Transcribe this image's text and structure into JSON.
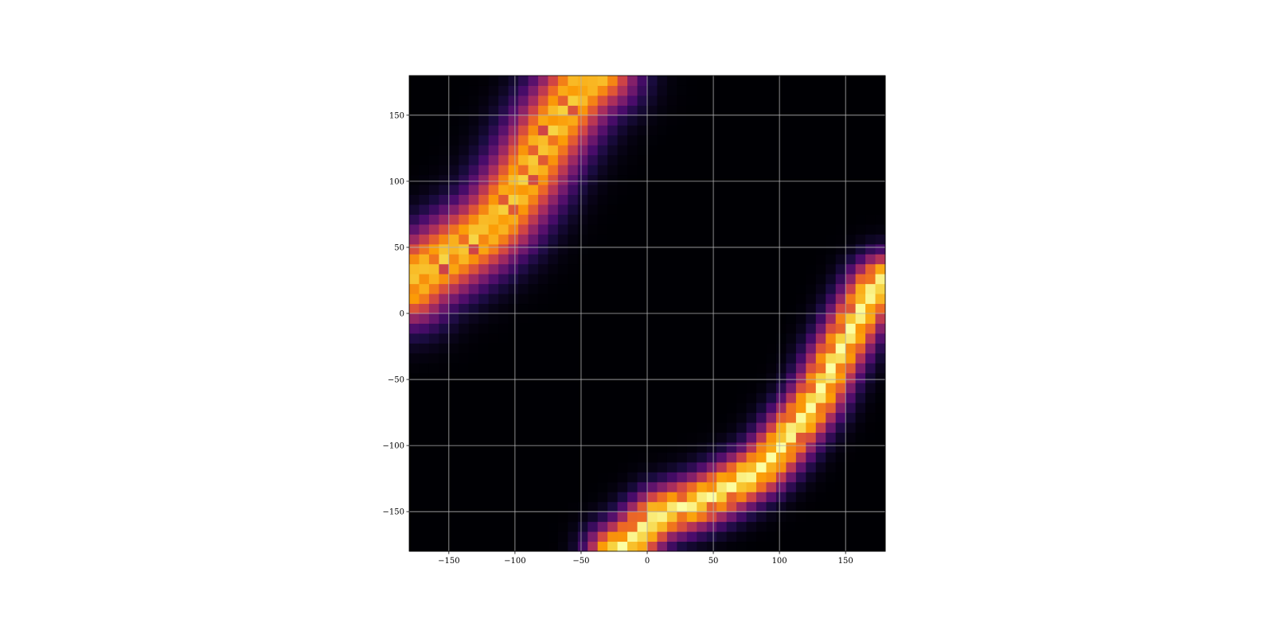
{
  "chart_data": {
    "type": "heatmap",
    "title": "",
    "xlabel": "",
    "ylabel": "",
    "xlim": [
      -180,
      180
    ],
    "ylim": [
      -180,
      180
    ],
    "bins": 48,
    "grid": true,
    "colormap": "inferno",
    "colormap_stops": [
      "#000004",
      "#1b0c41",
      "#4a0c6b",
      "#781c6d",
      "#a52c60",
      "#cf4446",
      "#ed6925",
      "#fb9b06",
      "#f7d13d",
      "#fcffa4"
    ],
    "xticks": [
      -150,
      -100,
      -50,
      0,
      50,
      100,
      150
    ],
    "yticks": [
      -150,
      -100,
      -50,
      0,
      50,
      100,
      150
    ],
    "xtick_labels": [
      "−150",
      "−100",
      "−50",
      "0",
      "50",
      "100",
      "150"
    ],
    "ytick_labels": [
      "−150",
      "−100",
      "−50",
      "0",
      "50",
      "100",
      "150"
    ],
    "density_bands": [
      {
        "name": "upper-left band",
        "points": [
          [
            -178,
            22
          ],
          [
            -168,
            32
          ],
          [
            -155,
            40
          ],
          [
            -140,
            50
          ],
          [
            -125,
            60
          ],
          [
            -112,
            72
          ],
          [
            -100,
            90
          ],
          [
            -90,
            106
          ],
          [
            -80,
            125
          ],
          [
            -70,
            142
          ],
          [
            -60,
            158
          ],
          [
            -50,
            172
          ],
          [
            -38,
            182
          ]
        ],
        "half_width_outer": 45,
        "half_width_inner": 6,
        "peak_intensity": 0.9
      },
      {
        "name": "lower-right band",
        "points": [
          [
            -25,
            -180
          ],
          [
            -10,
            -170
          ],
          [
            0,
            -160
          ],
          [
            10,
            -152
          ],
          [
            25,
            -147
          ],
          [
            40,
            -142
          ],
          [
            55,
            -135
          ],
          [
            70,
            -127
          ],
          [
            85,
            -118
          ],
          [
            95,
            -108
          ],
          [
            105,
            -96
          ],
          [
            112,
            -86
          ],
          [
            120,
            -76
          ],
          [
            128,
            -64
          ],
          [
            135,
            -50
          ],
          [
            142,
            -35
          ],
          [
            150,
            -20
          ],
          [
            158,
            -5
          ],
          [
            166,
            10
          ],
          [
            172,
            20
          ],
          [
            178,
            25
          ]
        ],
        "half_width_outer": 30,
        "half_width_inner": 8,
        "peak_intensity": 1.0
      }
    ]
  }
}
